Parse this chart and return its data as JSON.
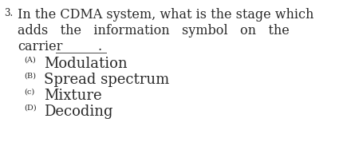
{
  "background_color": "#ffffff",
  "question_number": "3.",
  "question_line1": "In the CDMA system, what is the stage which",
  "question_line2": "adds   the   information   symbol   on   the",
  "question_line3_pre": "carrier",
  "question_line3_under": "________",
  "question_line3_period": ".",
  "options": [
    {
      "label": "(A)",
      "text": "Modulation"
    },
    {
      "label": "(B)",
      "text": "Spread spectrum"
    },
    {
      "label": "(c)",
      "text": "Mixture"
    },
    {
      "label": "(D)",
      "text": "Decoding"
    }
  ],
  "text_color": "#2a2a2a",
  "font_size_question": 11.5,
  "font_size_number": 8.5,
  "font_size_label": 7.0,
  "font_size_option": 13.0,
  "font_family": "serif"
}
